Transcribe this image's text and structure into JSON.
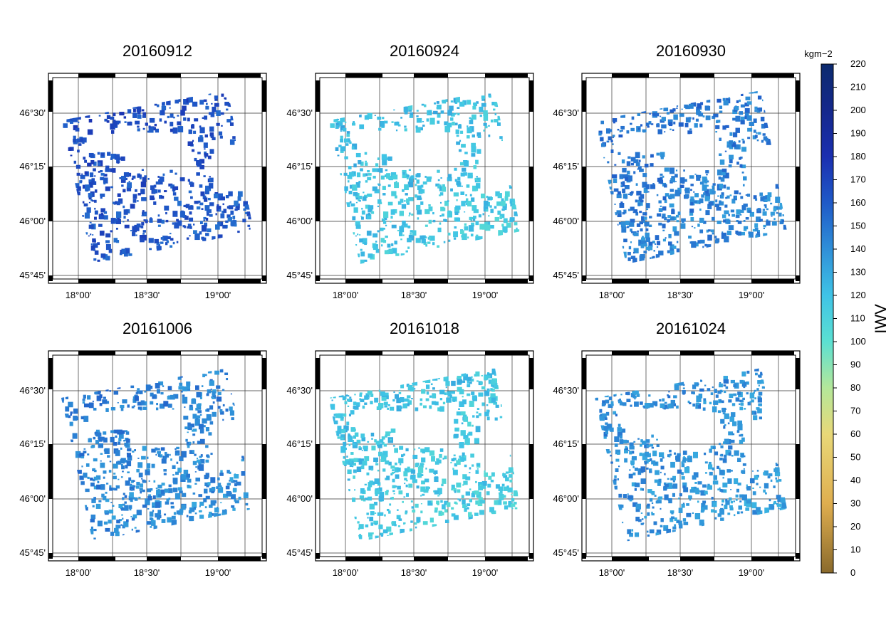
{
  "panels": [
    {
      "date": "20160912",
      "value": 162
    },
    {
      "date": "20160924",
      "value": 118
    },
    {
      "date": "20160930",
      "value": 145
    },
    {
      "date": "20161006",
      "value": 142
    },
    {
      "date": "20161018",
      "value": 116
    },
    {
      "date": "20161024",
      "value": 138
    }
  ],
  "axes": {
    "lon_ticks": [
      "18°00'",
      "18°30'",
      "19°00'"
    ],
    "lat_ticks": [
      "46°30'",
      "46°15'",
      "46°00'",
      "45°45'"
    ]
  },
  "colorbar": {
    "label": "IWV",
    "unit": "kgm−2",
    "min": 0,
    "max": 220,
    "ticks": [
      "220",
      "210",
      "200",
      "190",
      "180",
      "170",
      "160",
      "150",
      "140",
      "130",
      "120",
      "110",
      "100",
      "90",
      "80",
      "70",
      "60",
      "50",
      "40",
      "30",
      "20",
      "10",
      "0"
    ],
    "stops": [
      {
        "value": 0,
        "color": "#8a6a2c"
      },
      {
        "value": 30,
        "color": "#dfae4f"
      },
      {
        "value": 60,
        "color": "#e8d878"
      },
      {
        "value": 80,
        "color": "#b4e79a"
      },
      {
        "value": 100,
        "color": "#5be0d2"
      },
      {
        "value": 120,
        "color": "#3fc3e6"
      },
      {
        "value": 140,
        "color": "#2f8fd8"
      },
      {
        "value": 160,
        "color": "#1f5ac8"
      },
      {
        "value": 180,
        "color": "#1a2fb0"
      },
      {
        "value": 200,
        "color": "#14288c"
      },
      {
        "value": 220,
        "color": "#0c2a6e"
      }
    ]
  }
}
